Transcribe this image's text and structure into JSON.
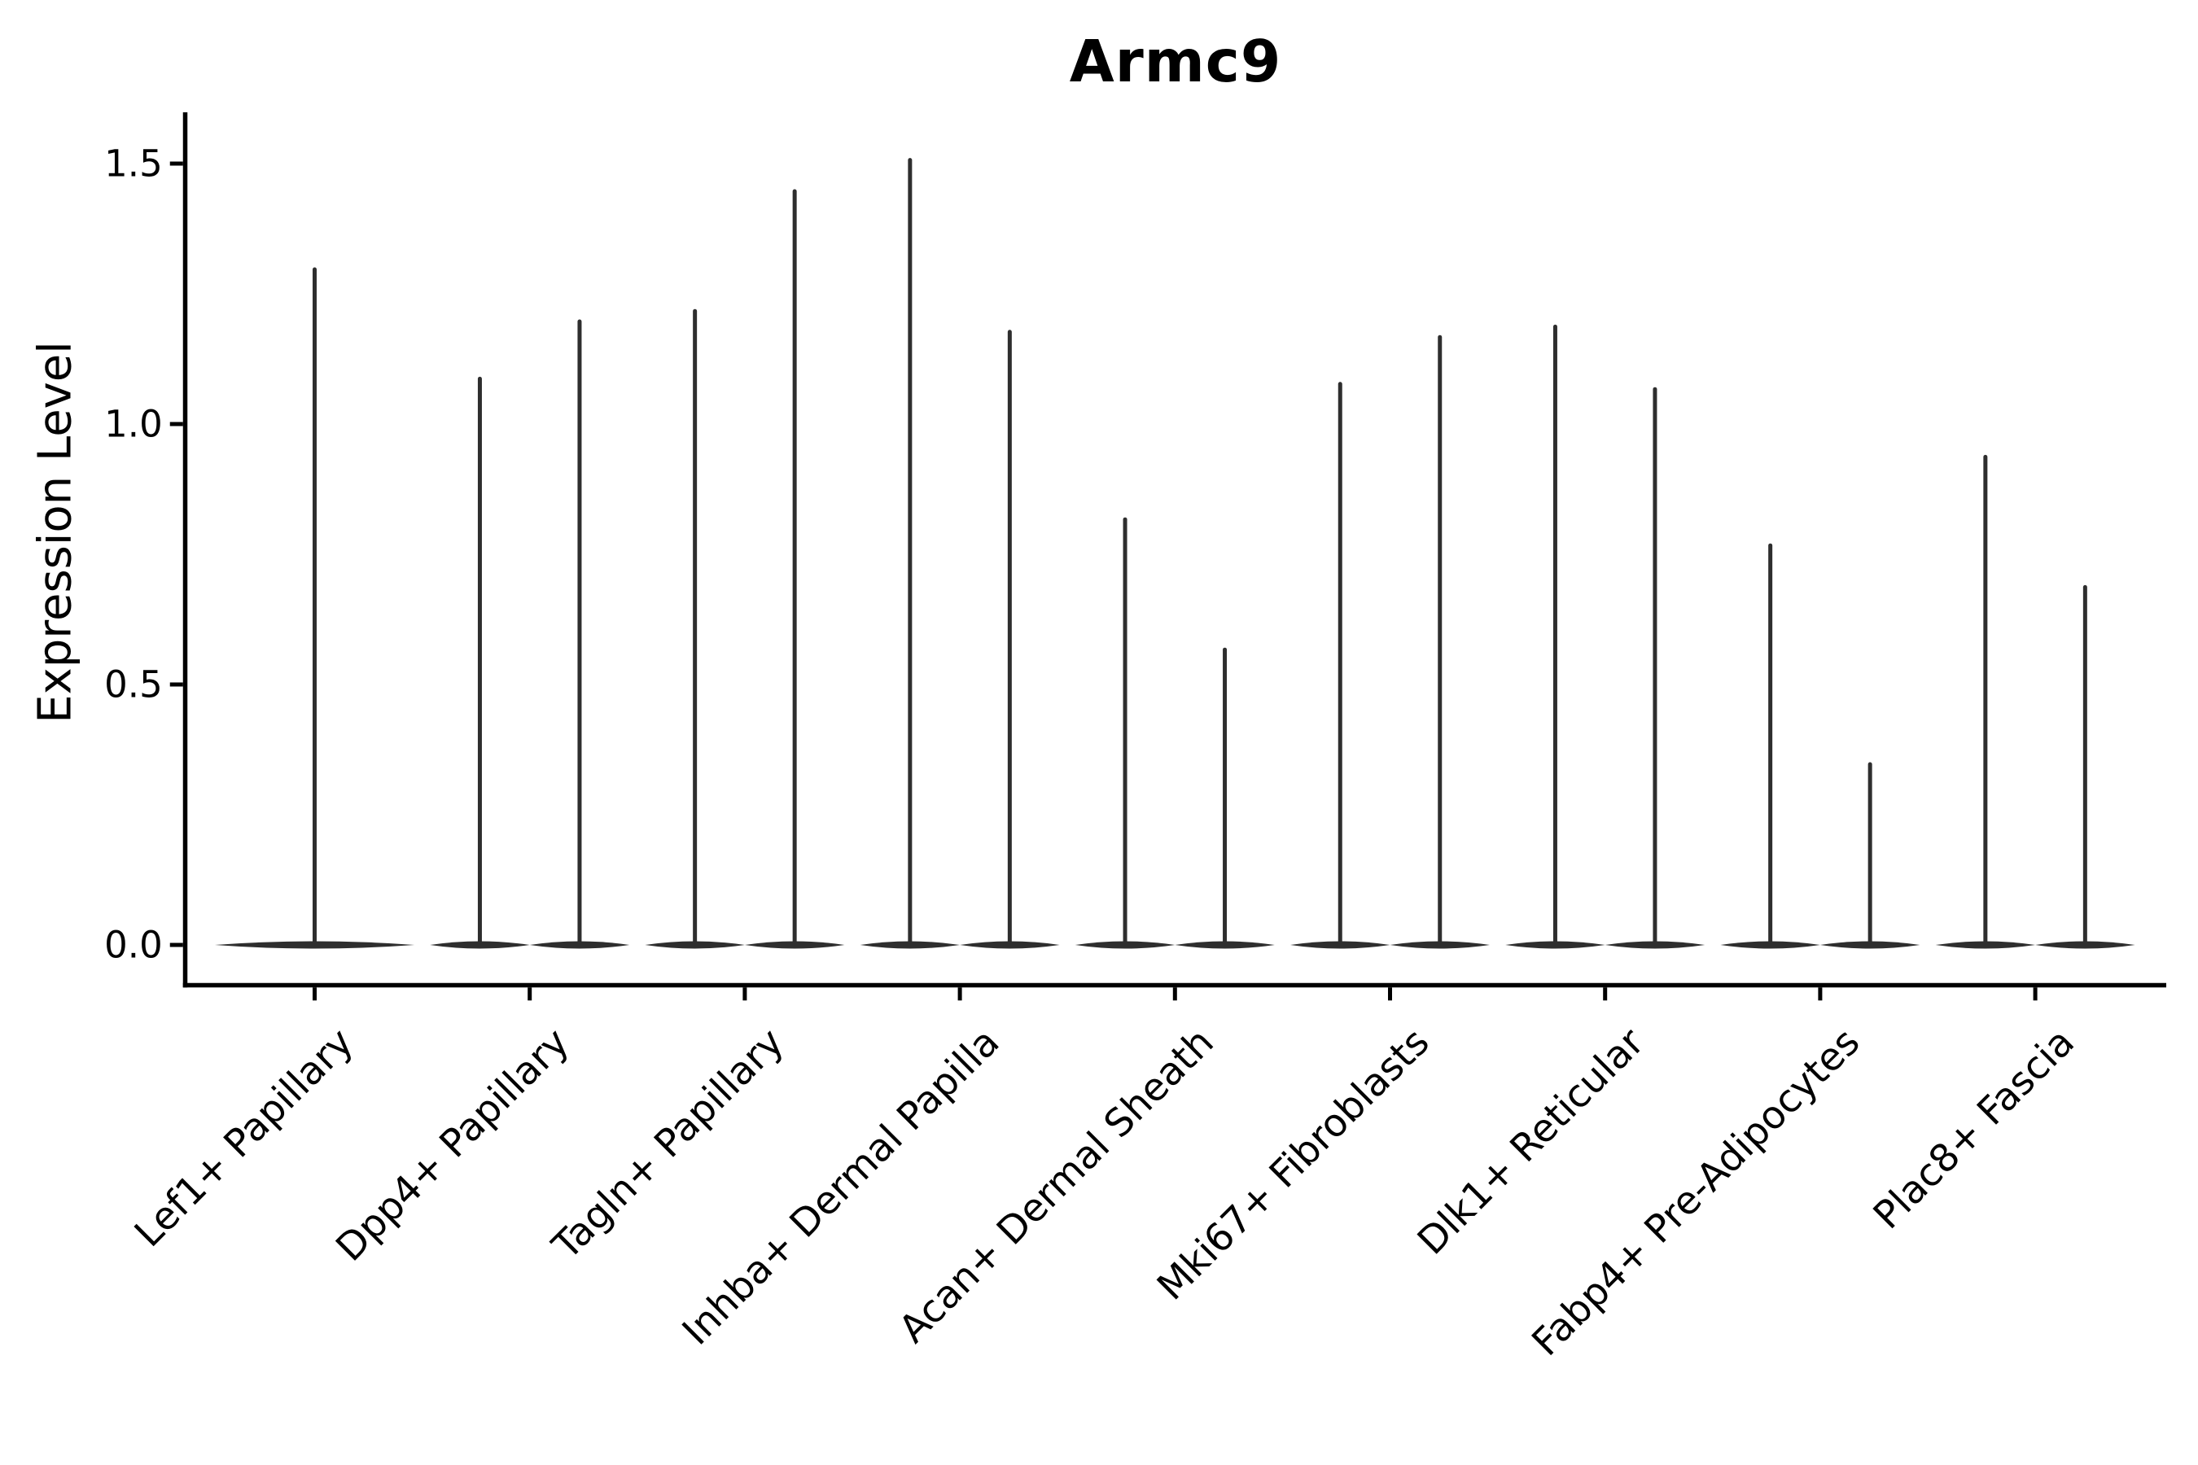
{
  "figure": {
    "title": "Armc9",
    "y_axis": {
      "label": "Expression Level",
      "tick_labels": [
        "0.0",
        "0.5",
        "1.0",
        "1.5"
      ]
    }
  },
  "chart_data": {
    "type": "violin",
    "title": "Armc9",
    "xlabel": "",
    "ylabel": "Expression Level",
    "ylim": [
      -0.08,
      1.6
    ],
    "yticks": [
      0,
      0.5,
      1,
      1.5
    ],
    "ytick_labels": [
      "0.0",
      "0.5",
      "1.0",
      "1.5"
    ],
    "grid": false,
    "legend": "none",
    "categories": [
      "Lef1+ Papillary",
      "Dpp4+ Papillary",
      "Tagln+ Papillary",
      "Inhba+ Dermal Papilla",
      "Acan+ Dermal Sheath",
      "Mki67+ Fibroblasts",
      "Dlk1+ Reticular",
      "Fabp4+ Pre-Adipocytes",
      "Plac8+ Fascia"
    ],
    "series": [
      {
        "category": "Lef1+ Papillary",
        "violin_max": [
          1.3
        ]
      },
      {
        "category": "Dpp4+ Papillary",
        "violin_max": [
          1.09,
          1.2
        ]
      },
      {
        "category": "Tagln+ Papillary",
        "violin_max": [
          1.22,
          1.45
        ]
      },
      {
        "category": "Inhba+ Dermal Papilla",
        "violin_max": [
          1.51,
          1.18
        ]
      },
      {
        "category": "Acan+ Dermal Sheath",
        "violin_max": [
          0.82,
          0.57
        ]
      },
      {
        "category": "Mki67+ Fibroblasts",
        "violin_max": [
          1.08,
          1.17
        ]
      },
      {
        "category": "Dlk1+ Reticular",
        "violin_max": [
          1.19,
          1.07
        ]
      },
      {
        "category": "Fabp4+ Pre-Adipocytes",
        "violin_max": [
          0.77,
          0.35
        ]
      },
      {
        "category": "Plac8+ Fascia",
        "violin_max": [
          0.94,
          0.69
        ]
      }
    ],
    "description": "Expression is concentrated at 0 (flat wide violin base) with a thin density tail reaching the listed maximum for each violin; categories with two values show two side-by-side violins.",
    "colors": {
      "violin": "#2e2e2e",
      "axis": "#000000",
      "text": "#000000",
      "background": "#ffffff"
    }
  }
}
